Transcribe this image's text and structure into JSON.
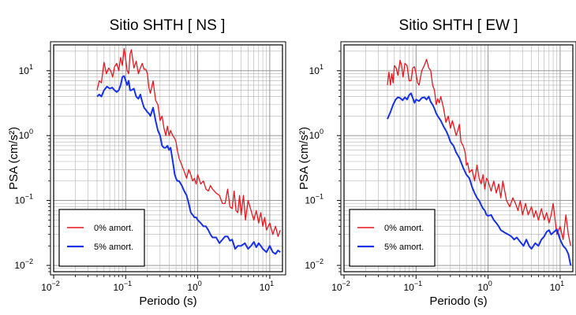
{
  "chart_data": [
    {
      "type": "line",
      "title": "Sitio SHTH [ NS ]",
      "xlabel": "Periodo (s)",
      "ylabel": "PSA (cm/s²)",
      "xscale": "log",
      "yscale": "log",
      "xlim": [
        0.01,
        15
      ],
      "ylim": [
        0.008,
        25
      ],
      "grid": true,
      "legend_position": "bottom-left",
      "x_ticks": [
        {
          "value": 0.01,
          "label": "10",
          "exp": "−2"
        },
        {
          "value": 0.1,
          "label": "10",
          "exp": "−1"
        },
        {
          "value": 1,
          "label": "10",
          "exp": "0"
        },
        {
          "value": 10,
          "label": "10",
          "exp": "1"
        }
      ],
      "y_ticks": [
        {
          "value": 0.01,
          "label": "10",
          "exp": "−2"
        },
        {
          "value": 0.1,
          "label": "10",
          "exp": "−1"
        },
        {
          "value": 1,
          "label": "10",
          "exp": "0"
        },
        {
          "value": 10,
          "label": "10",
          "exp": "1"
        }
      ],
      "series": [
        {
          "name": "0% amort.",
          "color": "#e8171f",
          "x": [
            0.04,
            0.043,
            0.046,
            0.05,
            0.054,
            0.058,
            0.062,
            0.066,
            0.07,
            0.075,
            0.08,
            0.085,
            0.09,
            0.095,
            0.1,
            0.105,
            0.11,
            0.115,
            0.12,
            0.13,
            0.14,
            0.15,
            0.16,
            0.17,
            0.18,
            0.19,
            0.2,
            0.21,
            0.22,
            0.24,
            0.26,
            0.28,
            0.3,
            0.32,
            0.34,
            0.36,
            0.38,
            0.4,
            0.42,
            0.45,
            0.48,
            0.5,
            0.52,
            0.55,
            0.6,
            0.65,
            0.7,
            0.75,
            0.8,
            0.85,
            0.9,
            0.95,
            1.0,
            1.1,
            1.2,
            1.3,
            1.4,
            1.5,
            1.6,
            1.8,
            2.0,
            2.2,
            2.4,
            2.6,
            2.8,
            3.0,
            3.2,
            3.4,
            3.6,
            3.8,
            4.0,
            4.3,
            4.6,
            5.0,
            5.5,
            6.0,
            6.5,
            7.0,
            7.5,
            8.0,
            8.5,
            9.0,
            10.0,
            11.0,
            12.0,
            13.0,
            14.0
          ],
          "y": [
            5.0,
            7.0,
            6.5,
            13.5,
            9.0,
            11.0,
            10.0,
            8.0,
            11.5,
            13.0,
            10.0,
            16.0,
            12.0,
            22.0,
            15.0,
            10.0,
            9.0,
            18.0,
            21.0,
            11.0,
            14.0,
            9.0,
            11.0,
            13.0,
            10.5,
            10.5,
            9.0,
            5.5,
            4.5,
            7.0,
            3.5,
            3.0,
            1.7,
            2.0,
            1.3,
            1.0,
            1.4,
            1.0,
            1.2,
            1.0,
            0.9,
            0.8,
            0.6,
            0.45,
            0.35,
            0.28,
            0.22,
            0.3,
            0.25,
            0.2,
            0.22,
            0.18,
            0.25,
            0.18,
            0.2,
            0.15,
            0.14,
            0.17,
            0.15,
            0.13,
            0.12,
            0.09,
            0.09,
            0.15,
            0.08,
            0.075,
            0.14,
            0.07,
            0.065,
            0.12,
            0.06,
            0.12,
            0.05,
            0.1,
            0.07,
            0.05,
            0.07,
            0.045,
            0.065,
            0.04,
            0.055,
            0.035,
            0.045,
            0.03,
            0.04,
            0.028,
            0.035
          ]
        },
        {
          "name": "5% amort.",
          "color": "#1730e8",
          "x": [
            0.04,
            0.043,
            0.046,
            0.05,
            0.055,
            0.06,
            0.065,
            0.07,
            0.075,
            0.08,
            0.085,
            0.09,
            0.095,
            0.1,
            0.105,
            0.11,
            0.115,
            0.12,
            0.13,
            0.14,
            0.15,
            0.16,
            0.17,
            0.18,
            0.19,
            0.2,
            0.21,
            0.22,
            0.24,
            0.26,
            0.28,
            0.3,
            0.32,
            0.34,
            0.36,
            0.38,
            0.4,
            0.42,
            0.45,
            0.48,
            0.5,
            0.52,
            0.55,
            0.6,
            0.65,
            0.7,
            0.75,
            0.8,
            0.85,
            0.9,
            0.95,
            1.0,
            1.1,
            1.2,
            1.3,
            1.4,
            1.5,
            1.6,
            1.8,
            2.0,
            2.2,
            2.4,
            2.6,
            2.8,
            3.0,
            3.3,
            3.6,
            4.0,
            4.5,
            5.0,
            5.5,
            6.0,
            6.5,
            7.0,
            7.5,
            8.0,
            9.0,
            10.0,
            11.0,
            12.0,
            13.0,
            14.0
          ],
          "y": [
            4.0,
            4.3,
            4.0,
            5.0,
            5.7,
            5.3,
            5.5,
            5.0,
            4.7,
            5.0,
            6.0,
            8.0,
            8.3,
            7.0,
            6.0,
            7.0,
            5.0,
            5.0,
            5.3,
            4.0,
            3.7,
            4.3,
            3.3,
            2.7,
            2.5,
            2.3,
            2.2,
            2.0,
            2.7,
            1.7,
            1.2,
            1.0,
            0.7,
            0.65,
            0.65,
            0.7,
            0.6,
            0.65,
            0.4,
            0.25,
            0.22,
            0.2,
            0.2,
            0.17,
            0.14,
            0.12,
            0.09,
            0.065,
            0.06,
            0.055,
            0.055,
            0.05,
            0.045,
            0.04,
            0.04,
            0.035,
            0.03,
            0.027,
            0.027,
            0.022,
            0.025,
            0.028,
            0.028,
            0.024,
            0.025,
            0.018,
            0.02,
            0.02,
            0.022,
            0.018,
            0.02,
            0.023,
            0.019,
            0.022,
            0.02,
            0.018,
            0.016,
            0.02,
            0.016,
            0.015,
            0.017,
            0.016
          ]
        }
      ]
    },
    {
      "type": "line",
      "title": "Sitio SHTH [ EW ]",
      "xlabel": "Periodo (s)",
      "ylabel": "PSA (cm/s²)",
      "xscale": "log",
      "yscale": "log",
      "xlim": [
        0.01,
        15
      ],
      "ylim": [
        0.008,
        25
      ],
      "grid": true,
      "legend_position": "bottom-left",
      "x_ticks": [
        {
          "value": 0.01,
          "label": "10",
          "exp": "−2"
        },
        {
          "value": 0.1,
          "label": "10",
          "exp": "−1"
        },
        {
          "value": 1,
          "label": "10",
          "exp": "0"
        },
        {
          "value": 10,
          "label": "10",
          "exp": "1"
        }
      ],
      "y_ticks": [
        {
          "value": 0.01,
          "label": "10",
          "exp": "−2"
        },
        {
          "value": 0.1,
          "label": "10",
          "exp": "−1"
        },
        {
          "value": 1,
          "label": "10",
          "exp": "0"
        },
        {
          "value": 10,
          "label": "10",
          "exp": "1"
        }
      ],
      "series": [
        {
          "name": "0% amort.",
          "color": "#e8171f",
          "x": [
            0.04,
            0.042,
            0.044,
            0.046,
            0.048,
            0.05,
            0.053,
            0.056,
            0.06,
            0.063,
            0.066,
            0.07,
            0.075,
            0.08,
            0.085,
            0.09,
            0.095,
            0.1,
            0.105,
            0.11,
            0.12,
            0.13,
            0.14,
            0.15,
            0.16,
            0.17,
            0.18,
            0.19,
            0.2,
            0.21,
            0.22,
            0.24,
            0.26,
            0.28,
            0.3,
            0.32,
            0.34,
            0.36,
            0.38,
            0.4,
            0.42,
            0.45,
            0.48,
            0.5,
            0.52,
            0.55,
            0.6,
            0.65,
            0.7,
            0.75,
            0.8,
            0.85,
            0.9,
            0.95,
            1.0,
            1.1,
            1.2,
            1.3,
            1.4,
            1.5,
            1.6,
            1.8,
            2.0,
            2.2,
            2.4,
            2.6,
            2.8,
            3.0,
            3.3,
            3.6,
            4.0,
            4.3,
            4.6,
            5.0,
            5.5,
            6.0,
            6.5,
            7.0,
            7.5,
            8.0,
            9.0,
            10.0,
            11.0,
            12.0,
            13.0,
            14.0
          ],
          "y": [
            6.0,
            9.5,
            6.0,
            9.0,
            6.5,
            12.0,
            11.0,
            8.5,
            14.5,
            12.0,
            8.0,
            13.0,
            12.0,
            7.0,
            7.0,
            11.0,
            11.5,
            9.0,
            6.5,
            6.0,
            10.0,
            12.0,
            15.0,
            11.0,
            10.0,
            6.0,
            5.0,
            3.0,
            3.7,
            3.2,
            4.0,
            2.7,
            1.6,
            2.0,
            1.3,
            1.7,
            1.3,
            1.0,
            1.2,
            1.5,
            0.8,
            0.7,
            0.55,
            0.35,
            0.38,
            0.27,
            0.3,
            0.2,
            0.35,
            0.22,
            0.18,
            0.25,
            0.15,
            0.22,
            0.2,
            0.14,
            0.2,
            0.13,
            0.18,
            0.11,
            0.2,
            0.1,
            0.08,
            0.11,
            0.09,
            0.07,
            0.1,
            0.06,
            0.09,
            0.06,
            0.08,
            0.055,
            0.07,
            0.05,
            0.075,
            0.05,
            0.065,
            0.045,
            0.06,
            0.09,
            0.03,
            0.04,
            0.025,
            0.06,
            0.03,
            0.02
          ]
        },
        {
          "name": "5% amort.",
          "color": "#1730e8",
          "x": [
            0.04,
            0.044,
            0.048,
            0.052,
            0.056,
            0.06,
            0.065,
            0.07,
            0.075,
            0.08,
            0.085,
            0.09,
            0.095,
            0.1,
            0.11,
            0.12,
            0.13,
            0.14,
            0.15,
            0.16,
            0.17,
            0.18,
            0.19,
            0.2,
            0.22,
            0.24,
            0.26,
            0.28,
            0.3,
            0.33,
            0.36,
            0.4,
            0.45,
            0.5,
            0.55,
            0.6,
            0.65,
            0.7,
            0.75,
            0.8,
            0.85,
            0.9,
            0.95,
            1.0,
            1.1,
            1.2,
            1.3,
            1.4,
            1.5,
            1.7,
            1.9,
            2.1,
            2.3,
            2.5,
            2.8,
            3.1,
            3.4,
            3.7,
            4.0,
            4.5,
            5.0,
            5.5,
            6.0,
            6.5,
            7.0,
            7.5,
            8.0,
            9.0,
            10.0,
            11.0,
            12.0,
            13.0,
            14.0
          ],
          "y": [
            1.8,
            2.3,
            3.0,
            3.6,
            3.9,
            3.8,
            3.5,
            3.9,
            3.6,
            4.2,
            4.5,
            3.8,
            3.2,
            3.6,
            3.4,
            3.8,
            3.9,
            3.6,
            4.0,
            3.3,
            3.0,
            2.6,
            2.2,
            2.0,
            1.7,
            1.4,
            1.2,
            1.0,
            0.8,
            0.7,
            0.55,
            0.45,
            0.32,
            0.25,
            0.22,
            0.16,
            0.13,
            0.11,
            0.1,
            0.085,
            0.075,
            0.07,
            0.06,
            0.058,
            0.06,
            0.05,
            0.045,
            0.04,
            0.035,
            0.032,
            0.03,
            0.028,
            0.025,
            0.027,
            0.023,
            0.02,
            0.025,
            0.02,
            0.018,
            0.022,
            0.02,
            0.025,
            0.028,
            0.033,
            0.035,
            0.03,
            0.032,
            0.036,
            0.025,
            0.02,
            0.018,
            0.015,
            0.01
          ]
        }
      ]
    }
  ]
}
